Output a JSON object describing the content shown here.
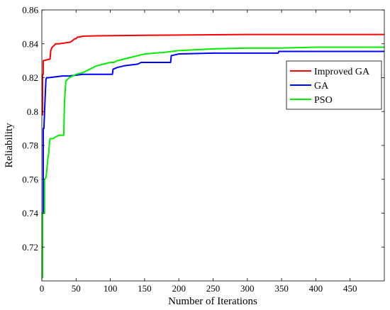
{
  "chart_data": {
    "type": "line",
    "title": "",
    "xlabel": "Number of Iterations",
    "ylabel": "Reliability",
    "xlim": [
      0,
      500
    ],
    "ylim": [
      0.7,
      0.86
    ],
    "xticks": [
      0,
      50,
      100,
      150,
      200,
      250,
      300,
      350,
      400,
      450
    ],
    "yticks": [
      0.72,
      0.74,
      0.76,
      0.78,
      0.8,
      0.82,
      0.84,
      0.86
    ],
    "xtick_labels": [
      "0",
      "50",
      "100",
      "150",
      "200",
      "250",
      "300",
      "350",
      "400",
      "450"
    ],
    "ytick_labels": [
      "0.72",
      "0.74",
      "0.76",
      "0.78",
      "0.8",
      "0.82",
      "0.84",
      "0.86"
    ],
    "grid": false,
    "legend_position": "right",
    "series": [
      {
        "name": "Improved GA",
        "color": "#ff0000",
        "x": [
          0,
          1,
          1,
          2,
          2,
          12,
          13,
          15,
          18,
          20,
          25,
          42,
          45,
          48,
          50,
          52,
          55,
          60,
          80,
          150,
          300,
          500
        ],
        "y": [
          0.798,
          0.798,
          0.822,
          0.822,
          0.83,
          0.831,
          0.836,
          0.838,
          0.839,
          0.84,
          0.84,
          0.841,
          0.842,
          0.843,
          0.843,
          0.844,
          0.844,
          0.8445,
          0.8447,
          0.845,
          0.8455,
          0.8455
        ]
      },
      {
        "name": "GA",
        "color": "#0000ff",
        "x": [
          0,
          1,
          1,
          2,
          2,
          3,
          4,
          5,
          6,
          7,
          10,
          30,
          40,
          60,
          103,
          104,
          110,
          120,
          140,
          145,
          188,
          189,
          200,
          250,
          345,
          346,
          350,
          500
        ],
        "y": [
          0.72,
          0.72,
          0.74,
          0.74,
          0.79,
          0.79,
          0.8,
          0.81,
          0.819,
          0.82,
          0.82,
          0.821,
          0.821,
          0.822,
          0.822,
          0.825,
          0.826,
          0.827,
          0.828,
          0.829,
          0.829,
          0.833,
          0.834,
          0.8345,
          0.8345,
          0.8355,
          0.8355,
          0.8355
        ]
      },
      {
        "name": "PSO",
        "color": "#00ee00",
        "x": [
          0,
          1,
          1,
          4,
          4,
          6,
          7,
          8,
          9,
          10,
          11,
          12,
          16,
          20,
          25,
          32,
          33,
          35,
          40,
          45,
          50,
          60,
          70,
          80,
          90,
          100,
          105,
          110,
          120,
          130,
          140,
          150,
          180,
          200,
          250,
          300,
          350,
          400,
          500
        ],
        "y": [
          0.702,
          0.702,
          0.74,
          0.74,
          0.76,
          0.761,
          0.764,
          0.769,
          0.773,
          0.775,
          0.781,
          0.784,
          0.784,
          0.785,
          0.786,
          0.786,
          0.805,
          0.818,
          0.82,
          0.821,
          0.822,
          0.823,
          0.825,
          0.827,
          0.828,
          0.829,
          0.829,
          0.83,
          0.831,
          0.832,
          0.833,
          0.834,
          0.835,
          0.836,
          0.837,
          0.8375,
          0.8375,
          0.838,
          0.838
        ]
      }
    ]
  }
}
